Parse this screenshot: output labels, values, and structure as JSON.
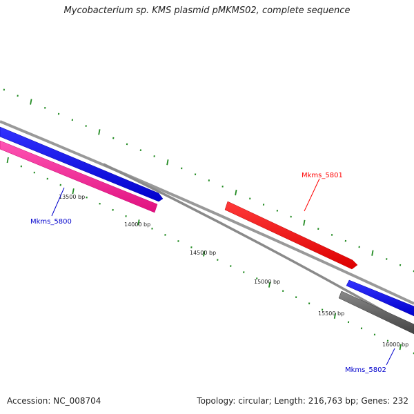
{
  "title": "Mycobacterium sp. KMS plasmid pMKMS02, complete sequence",
  "footer": {
    "accession": "Accession: NC_008704",
    "stats": "Topology: circular; Length: 216,763 bp; Genes: 232"
  },
  "ticks": [
    {
      "label": "13500 bp"
    },
    {
      "label": "14000 bp"
    },
    {
      "label": "14500 bp"
    },
    {
      "label": "15000 bp"
    },
    {
      "label": "15500 bp"
    },
    {
      "label": "16000 bp"
    }
  ],
  "genes": [
    {
      "name": "Mkms_5800",
      "color": "#0000cc"
    },
    {
      "name": "Mkms_5801",
      "color": "#ff0000"
    },
    {
      "name": "Mkms_5802",
      "color": "#0000cc"
    }
  ],
  "colors": {
    "forward_gene": "#0000ff",
    "reverse_gene_pink": "#ff1493",
    "red_gene": "#ff0000",
    "gray_gene": "#666666",
    "backbone": "#888888",
    "tick": "#228b22"
  }
}
